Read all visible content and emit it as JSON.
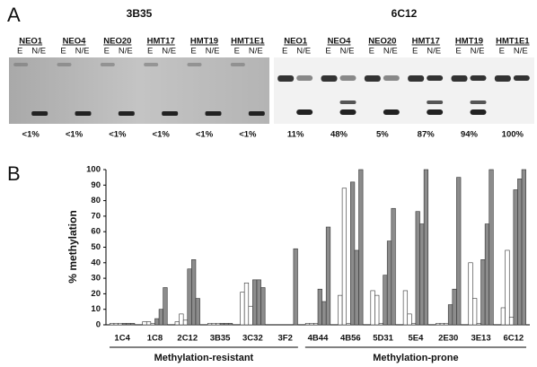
{
  "panel_a": {
    "label": "A",
    "lane_subs": [
      "E",
      "N/E"
    ],
    "gels": [
      {
        "title": "3B35",
        "lanes": [
          "NEO1",
          "NEO4",
          "NEO20",
          "HMT17",
          "HMT19",
          "HMT1E1"
        ],
        "percents": [
          "<1%",
          "<1%",
          "<1%",
          "<1%",
          "<1%",
          "<1%"
        ]
      },
      {
        "title": "6C12",
        "lanes": [
          "NEO1",
          "NEO4",
          "NEO20",
          "HMT17",
          "HMT19",
          "HMT1E1"
        ],
        "percents": [
          "11%",
          "48%",
          "5%",
          "87%",
          "94%",
          "100%"
        ]
      }
    ]
  },
  "chart_data": {
    "type": "bar",
    "panel_label": "B",
    "ylabel": "% methylation",
    "categories": [
      "1C4",
      "1C8",
      "2C12",
      "3B35",
      "3C32",
      "3F2",
      "4B44",
      "4B56",
      "5D31",
      "5E4",
      "2E30",
      "3E13",
      "6C12"
    ],
    "groups": [
      {
        "label": "Methylation-resistant",
        "categories": [
          "1C4",
          "1C8",
          "2C12",
          "3B35",
          "3C32",
          "3F2"
        ]
      },
      {
        "label": "Methylation-prone",
        "categories": [
          "4B44",
          "4B56",
          "5D31",
          "5E4",
          "2E30",
          "3E13",
          "6C12"
        ]
      }
    ],
    "series": [
      {
        "color": "#ffffff",
        "values": [
          1,
          2,
          2,
          1,
          21,
          0,
          1,
          19,
          22,
          22,
          1,
          40,
          11
        ]
      },
      {
        "color": "#ffffff",
        "values": [
          1,
          2,
          7,
          1,
          27,
          0,
          1,
          88,
          19,
          7,
          1,
          17,
          48
        ]
      },
      {
        "color": "#ffffff",
        "values": [
          1,
          1,
          3,
          1,
          12,
          0,
          1,
          1,
          1,
          1,
          1,
          1,
          5
        ]
      },
      {
        "color": "#8c8c8c",
        "values": [
          1,
          4,
          36,
          1,
          29,
          0,
          23,
          92,
          32,
          73,
          13,
          42,
          87
        ]
      },
      {
        "color": "#8c8c8c",
        "values": [
          1,
          10,
          42,
          1,
          29,
          0,
          15,
          48,
          54,
          65,
          23,
          65,
          94
        ]
      },
      {
        "color": "#8c8c8c",
        "values": [
          1,
          24,
          17,
          1,
          24,
          49,
          63,
          100,
          75,
          100,
          95,
          100,
          100
        ]
      }
    ],
    "ylim": [
      0,
      100
    ],
    "yticks": [
      0,
      10,
      20,
      30,
      40,
      50,
      60,
      70,
      80,
      90,
      100
    ],
    "grid": false
  }
}
